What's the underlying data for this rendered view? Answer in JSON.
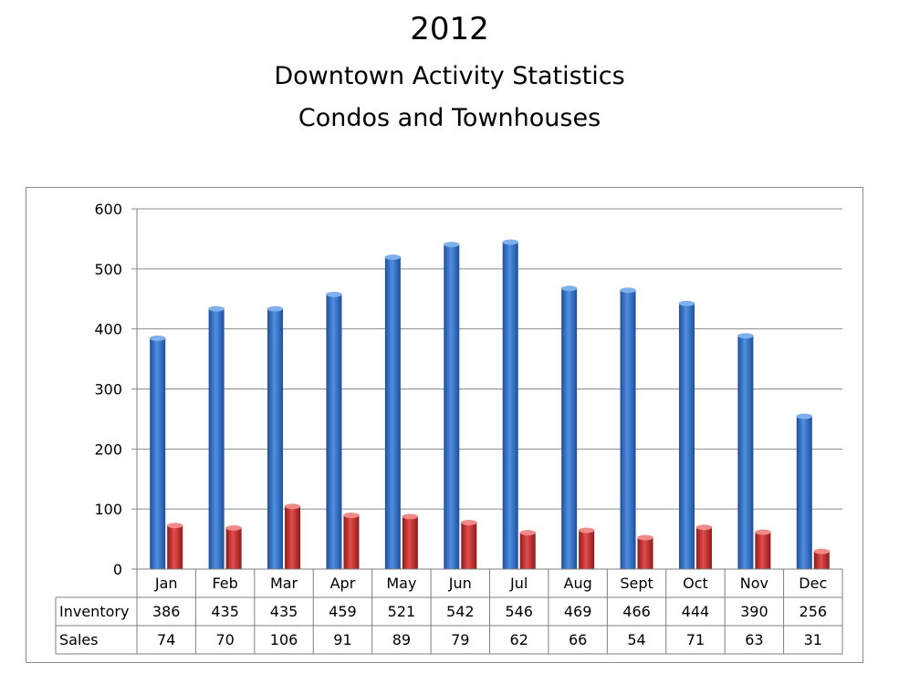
{
  "chart_data": {
    "type": "bar",
    "title": "2012",
    "subtitle": [
      "Downtown Activity Statistics",
      "Condos and Townhouses"
    ],
    "categories": [
      "Jan",
      "Feb",
      "Mar",
      "Apr",
      "May",
      "Jun",
      "Jul",
      "Aug",
      "Sept",
      "Oct",
      "Nov",
      "Dec"
    ],
    "series": [
      {
        "name": "Inventory",
        "values": [
          386,
          435,
          435,
          459,
          521,
          542,
          546,
          469,
          466,
          444,
          390,
          256
        ],
        "color": "#3a78c8"
      },
      {
        "name": "Sales",
        "values": [
          74,
          70,
          106,
          91,
          89,
          79,
          62,
          66,
          54,
          71,
          63,
          31
        ],
        "color": "#cf3433"
      }
    ],
    "ylim": [
      0,
      600
    ],
    "yticks": [
      0,
      100,
      200,
      300,
      400,
      500,
      600
    ],
    "grid": true,
    "legend": "data table",
    "data_table": true
  }
}
